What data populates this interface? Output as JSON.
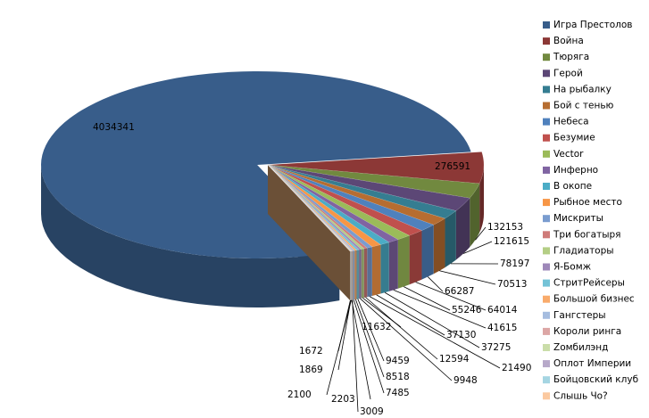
{
  "chart_data": {
    "type": "pie3d",
    "categories": [
      "Игра Престолов",
      "Война",
      "Тюряга",
      "Герой",
      "На рыбалку",
      "Бой с тенью",
      "Небеса",
      "Безумие",
      "Vector",
      "Инферно",
      "В окопе",
      "Рыбное место",
      "Мискриты",
      "Три богатыря",
      "Гладиаторы",
      "Я-Бомж",
      "СтритРейсеры",
      "Большой бизнес",
      "Гангстеры",
      "Короли ринга",
      "Zомбилэнд",
      "Оплот Империи",
      "Бойцовский клуб",
      "Слышь Чо?"
    ],
    "values": [
      4034341,
      276591,
      132153,
      121615,
      78197,
      70513,
      66287,
      64014,
      55246,
      41615,
      37275,
      37130,
      21490,
      12594,
      11632,
      9948,
      9459,
      8518,
      7485,
      3009,
      2203,
      2100,
      1869,
      1672
    ],
    "colors": [
      "#385d8a",
      "#8c3836",
      "#71893f",
      "#5c4776",
      "#357d91",
      "#b66d31",
      "#4f81bd",
      "#c0504d",
      "#9bbb59",
      "#8064a2",
      "#4bacc6",
      "#f79646",
      "#7a9ccf",
      "#cf7b79",
      "#b4ce85",
      "#9e88b9",
      "#74c3d7",
      "#f9ab6b",
      "#a6bddf",
      "#dca6a5",
      "#cadda9",
      "#b7a9c9",
      "#a5d5e2",
      "#fbc9a0"
    ],
    "legend": "right"
  }
}
